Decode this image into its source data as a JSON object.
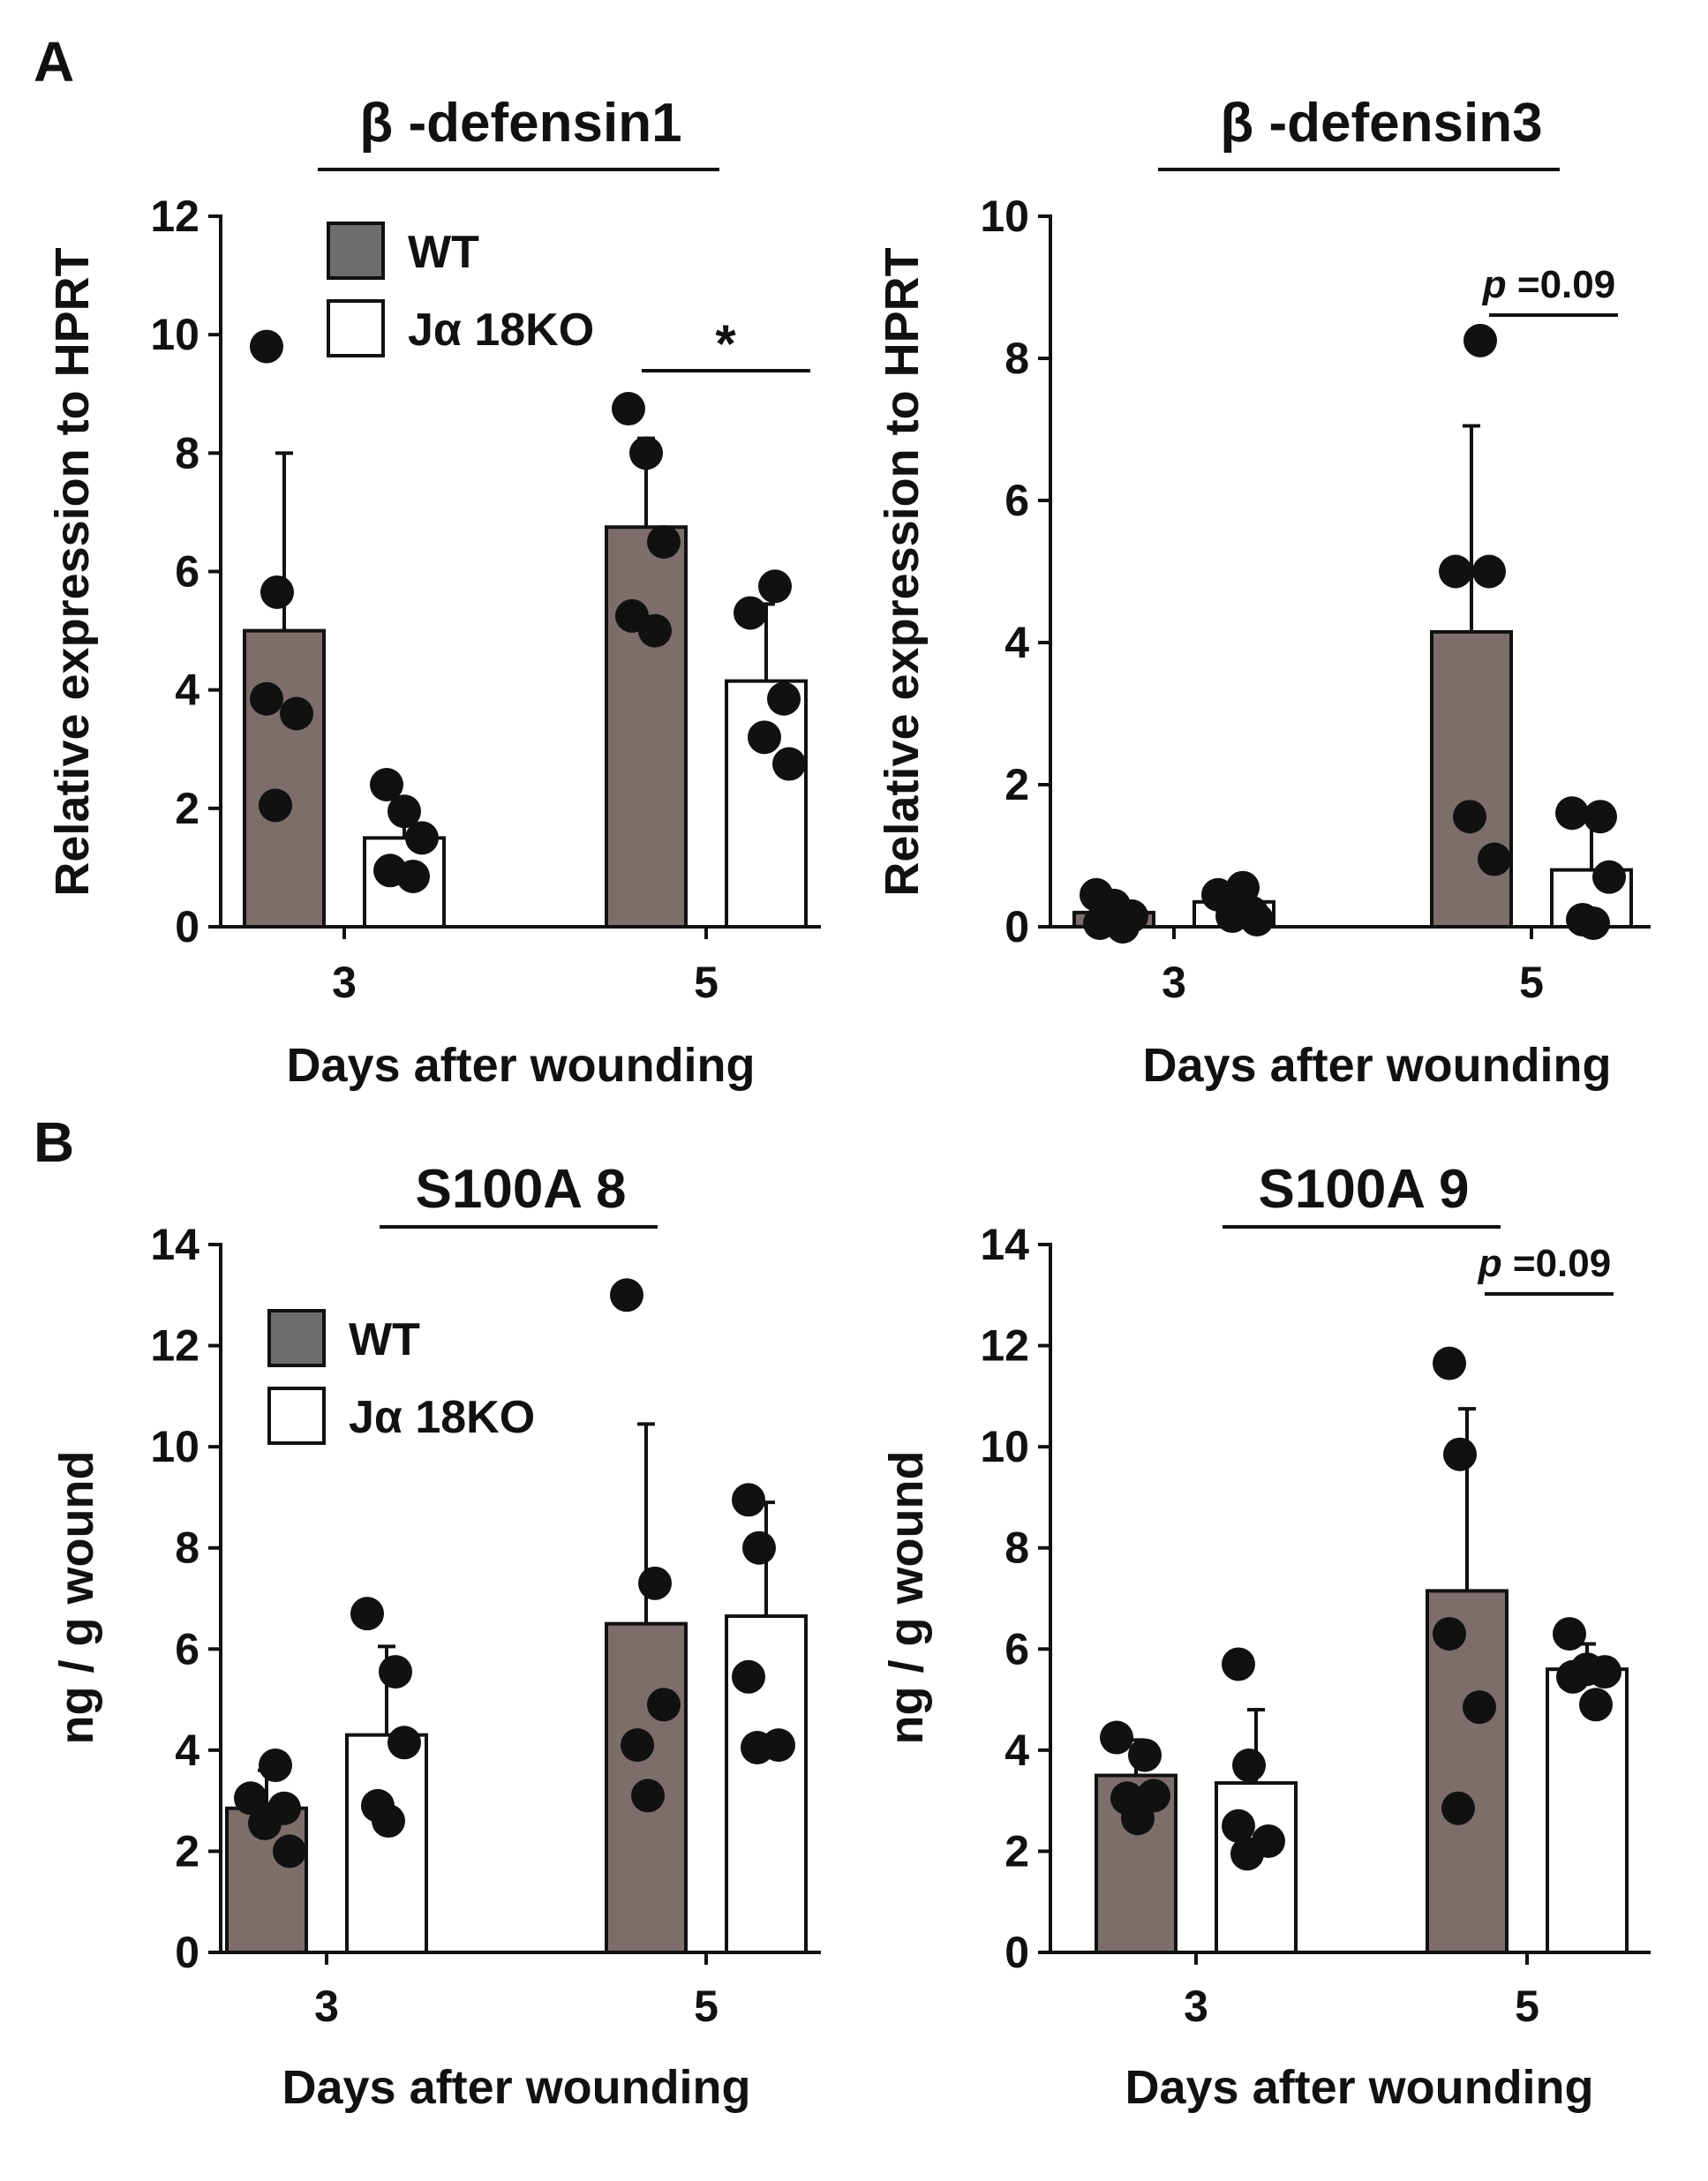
{
  "panels": [
    "A",
    "B"
  ],
  "legend": {
    "wt": "WT",
    "ko": "Jα 18KO"
  },
  "colors": {
    "wt_bar": "#7d6e6c",
    "ko_bar": "#ffffff",
    "outline": "#111111",
    "point": "#111111",
    "legend_wt": "#6e6e6e"
  },
  "chart_data": [
    {
      "type": "bar",
      "title": "β -defensin1",
      "xlabel": "Days after wounding",
      "ylabel": "Relative expression to HPRT",
      "categories": [
        "3",
        "5"
      ],
      "ylim": [
        0,
        12
      ],
      "yticks": [
        "0",
        "2",
        "4",
        "6",
        "8",
        "10",
        "12"
      ],
      "series": [
        {
          "name": "WT",
          "values": [
            5.0,
            6.75
          ],
          "errors": [
            3.0,
            1.5
          ],
          "points": [
            [
              9.8,
              5.65,
              3.85,
              3.6,
              2.05
            ],
            [
              8.75,
              8.0,
              6.5,
              5.25,
              5.0
            ]
          ]
        },
        {
          "name": "Jα 18KO",
          "values": [
            1.5,
            4.15
          ],
          "errors": [
            0.65,
            1.3
          ],
          "points": [
            [
              2.4,
              1.95,
              1.5,
              0.95,
              0.85
            ],
            [
              5.75,
              5.3,
              3.85,
              3.2,
              2.75
            ]
          ]
        }
      ],
      "significance": {
        "group": 1,
        "label": "*"
      },
      "legend": true
    },
    {
      "type": "bar",
      "title": "β -defensin3",
      "xlabel": "Days after wounding",
      "ylabel": "Relative expression to HPRT",
      "categories": [
        "3",
        "5"
      ],
      "ylim": [
        0,
        10
      ],
      "yticks": [
        "0",
        "2",
        "4",
        "6",
        "8",
        "10"
      ],
      "series": [
        {
          "name": "WT",
          "values": [
            0.2,
            4.15
          ],
          "errors": [
            0.2,
            2.9
          ],
          "points": [
            [
              0.45,
              0.3,
              0.15,
              0.05,
              0.0
            ],
            [
              8.25,
              5.0,
              5.0,
              1.55,
              0.95
            ]
          ]
        },
        {
          "name": "Jα 18KO",
          "values": [
            0.35,
            0.8
          ],
          "errors": [
            0.15,
            0.75
          ],
          "points": [
            [
              0.55,
              0.45,
              0.2,
              0.15,
              0.1
            ],
            [
              1.6,
              1.55,
              0.7,
              0.1,
              0.05
            ]
          ]
        }
      ],
      "significance": {
        "group": 1,
        "prefix": "p",
        "label": "=0.09"
      },
      "legend": false
    },
    {
      "type": "bar",
      "title": "S100A 8",
      "xlabel": "Days after wounding",
      "ylabel": "ng / g wound",
      "categories": [
        "3",
        "5"
      ],
      "ylim": [
        0,
        14
      ],
      "yticks": [
        "0",
        "2",
        "4",
        "6",
        "8",
        "10",
        "12",
        "14"
      ],
      "series": [
        {
          "name": "WT",
          "values": [
            2.85,
            6.5
          ],
          "errors": [
            0.75,
            3.95
          ],
          "points": [
            [
              3.7,
              3.05,
              2.85,
              2.55,
              2.0
            ],
            [
              13.0,
              7.3,
              4.9,
              4.1,
              3.1
            ]
          ]
        },
        {
          "name": "Jα 18KO",
          "values": [
            4.3,
            6.65
          ],
          "errors": [
            1.75,
            2.25
          ],
          "points": [
            [
              6.7,
              5.55,
              4.15,
              2.9,
              2.6
            ],
            [
              8.95,
              8.0,
              5.45,
              4.1,
              4.05
            ]
          ]
        }
      ],
      "significance": null,
      "legend": true
    },
    {
      "type": "bar",
      "title": "S100A 9",
      "xlabel": "Days after wounding",
      "ylabel": "ng / g wound",
      "categories": [
        "3",
        "5"
      ],
      "ylim": [
        0,
        14
      ],
      "yticks": [
        "0",
        "2",
        "4",
        "6",
        "8",
        "10",
        "12",
        "14"
      ],
      "series": [
        {
          "name": "WT",
          "values": [
            3.5,
            7.15
          ],
          "errors": [
            0.7,
            3.6
          ],
          "points": [
            [
              4.25,
              3.9,
              3.1,
              3.05,
              2.65
            ],
            [
              11.65,
              9.85,
              6.3,
              4.85,
              2.85
            ]
          ]
        },
        {
          "name": "Jα 18KO",
          "values": [
            3.35,
            5.6
          ],
          "errors": [
            1.45,
            0.5
          ],
          "points": [
            [
              5.7,
              3.7,
              2.5,
              2.2,
              1.95
            ],
            [
              6.3,
              5.6,
              5.55,
              5.45,
              4.9
            ]
          ]
        }
      ],
      "significance": {
        "group": 1,
        "prefix": "p",
        "label": "=0.09"
      },
      "legend": false
    }
  ]
}
